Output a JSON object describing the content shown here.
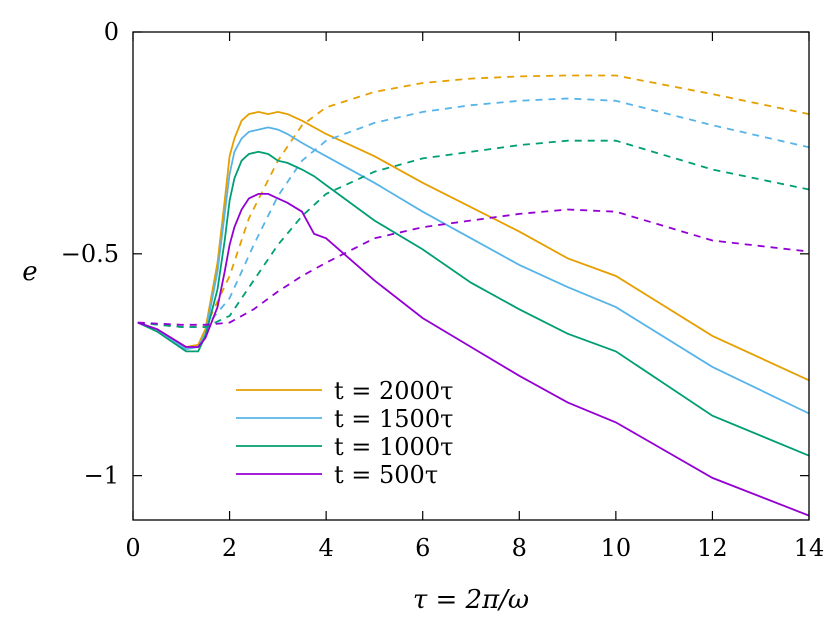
{
  "chart_data": {
    "type": "line",
    "title": "",
    "xlabel": "τ = 2π/ω",
    "ylabel": "e",
    "xlim": [
      0,
      14
    ],
    "ylim": [
      -1.1,
      0
    ],
    "x_ticks": [
      {
        "value": 0,
        "label": "0"
      },
      {
        "value": 2,
        "label": "2"
      },
      {
        "value": 4,
        "label": "4"
      },
      {
        "value": 6,
        "label": "6"
      },
      {
        "value": 8,
        "label": "8"
      },
      {
        "value": 10,
        "label": "10"
      },
      {
        "value": 12,
        "label": "12"
      },
      {
        "value": 14,
        "label": "14"
      }
    ],
    "y_ticks": [
      {
        "value": 0,
        "label": "0"
      },
      {
        "value": -0.5,
        "label": "−0.5"
      },
      {
        "value": -1,
        "label": "−1"
      }
    ],
    "legend_position": "bottom-left",
    "series": [
      {
        "name": "t = 2000τ",
        "color": "#E69F00",
        "solid": {
          "x": [
            0.1,
            0.5,
            1.1,
            1.35,
            1.5,
            1.75,
            1.9,
            2.0,
            2.1,
            2.25,
            2.4,
            2.6,
            2.8,
            3.0,
            3.2,
            3.5,
            3.75,
            4.0,
            5.0,
            6.0,
            7.0,
            8.0,
            9.0,
            10.0,
            12.0,
            14.0
          ],
          "y": [
            -0.655,
            -0.67,
            -0.71,
            -0.705,
            -0.67,
            -0.52,
            -0.38,
            -0.28,
            -0.24,
            -0.2,
            -0.185,
            -0.18,
            -0.185,
            -0.18,
            -0.185,
            -0.2,
            -0.215,
            -0.23,
            -0.28,
            -0.34,
            -0.395,
            -0.45,
            -0.51,
            -0.55,
            -0.685,
            -0.785
          ]
        },
        "dashed": {
          "x": [
            0.1,
            1.0,
            1.5,
            2.0,
            2.4,
            3.0,
            3.5,
            4.0,
            5.0,
            6.0,
            7.0,
            8.0,
            9.0,
            10.0,
            12.0,
            14.0
          ],
          "y": [
            -0.655,
            -0.665,
            -0.665,
            -0.55,
            -0.42,
            -0.29,
            -0.21,
            -0.17,
            -0.135,
            -0.115,
            -0.105,
            -0.1,
            -0.098,
            -0.098,
            -0.14,
            -0.185
          ]
        }
      },
      {
        "name": "t = 1500τ",
        "color": "#56B4E9",
        "solid": {
          "x": [
            0.1,
            0.5,
            1.1,
            1.35,
            1.5,
            1.75,
            1.9,
            2.0,
            2.1,
            2.25,
            2.4,
            2.6,
            2.8,
            3.0,
            3.2,
            3.5,
            3.75,
            4.0,
            5.0,
            6.0,
            7.0,
            8.0,
            9.0,
            10.0,
            12.0,
            14.0
          ],
          "y": [
            -0.655,
            -0.67,
            -0.715,
            -0.71,
            -0.68,
            -0.54,
            -0.41,
            -0.32,
            -0.27,
            -0.24,
            -0.225,
            -0.22,
            -0.215,
            -0.22,
            -0.23,
            -0.25,
            -0.265,
            -0.28,
            -0.34,
            -0.405,
            -0.465,
            -0.525,
            -0.575,
            -0.62,
            -0.755,
            -0.86
          ]
        },
        "dashed": {
          "x": [
            0.1,
            1.0,
            1.5,
            2.0,
            2.5,
            3.0,
            3.5,
            4.0,
            5.0,
            6.0,
            7.0,
            8.0,
            9.0,
            10.0,
            12.0,
            14.0
          ],
          "y": [
            -0.655,
            -0.665,
            -0.665,
            -0.6,
            -0.48,
            -0.37,
            -0.29,
            -0.245,
            -0.205,
            -0.18,
            -0.165,
            -0.155,
            -0.15,
            -0.155,
            -0.21,
            -0.26
          ]
        }
      },
      {
        "name": "t = 1000τ",
        "color": "#009E73",
        "solid": {
          "x": [
            0.1,
            0.5,
            1.1,
            1.35,
            1.5,
            1.75,
            1.9,
            2.0,
            2.1,
            2.25,
            2.4,
            2.6,
            2.8,
            3.0,
            3.2,
            3.5,
            3.75,
            4.0,
            5.0,
            6.0,
            7.0,
            8.0,
            9.0,
            10.0,
            12.0,
            14.0
          ],
          "y": [
            -0.655,
            -0.675,
            -0.72,
            -0.72,
            -0.685,
            -0.58,
            -0.47,
            -0.38,
            -0.33,
            -0.29,
            -0.275,
            -0.27,
            -0.275,
            -0.29,
            -0.295,
            -0.31,
            -0.325,
            -0.345,
            -0.425,
            -0.49,
            -0.565,
            -0.625,
            -0.68,
            -0.72,
            -0.865,
            -0.955
          ]
        },
        "dashed": {
          "x": [
            0.1,
            1.0,
            1.5,
            2.0,
            2.5,
            3.0,
            3.5,
            4.0,
            5.0,
            6.0,
            7.0,
            8.0,
            9.0,
            10.0,
            12.0,
            14.0
          ],
          "y": [
            -0.655,
            -0.665,
            -0.665,
            -0.64,
            -0.56,
            -0.48,
            -0.415,
            -0.365,
            -0.315,
            -0.285,
            -0.27,
            -0.255,
            -0.245,
            -0.245,
            -0.31,
            -0.355
          ]
        }
      },
      {
        "name": "t = 500τ",
        "color": "#9400D3",
        "solid": {
          "x": [
            0.1,
            0.5,
            1.1,
            1.35,
            1.5,
            1.75,
            1.9,
            2.0,
            2.1,
            2.25,
            2.4,
            2.6,
            2.8,
            3.0,
            3.2,
            3.5,
            3.75,
            4.0,
            5.0,
            6.0,
            7.0,
            8.0,
            9.0,
            10.0,
            12.0,
            14.0
          ],
          "y": [
            -0.655,
            -0.67,
            -0.71,
            -0.71,
            -0.69,
            -0.62,
            -0.54,
            -0.48,
            -0.44,
            -0.4,
            -0.375,
            -0.365,
            -0.365,
            -0.375,
            -0.385,
            -0.405,
            -0.455,
            -0.465,
            -0.56,
            -0.645,
            -0.71,
            -0.775,
            -0.835,
            -0.88,
            -1.005,
            -1.09
          ]
        },
        "dashed": {
          "x": [
            0.1,
            1.0,
            1.5,
            2.0,
            2.5,
            3.0,
            3.5,
            4.0,
            5.0,
            6.0,
            7.0,
            8.0,
            9.0,
            10.0,
            12.0,
            14.0
          ],
          "y": [
            -0.655,
            -0.66,
            -0.66,
            -0.655,
            -0.625,
            -0.585,
            -0.55,
            -0.52,
            -0.465,
            -0.44,
            -0.425,
            -0.41,
            -0.4,
            -0.405,
            -0.47,
            -0.495
          ]
        }
      }
    ]
  }
}
